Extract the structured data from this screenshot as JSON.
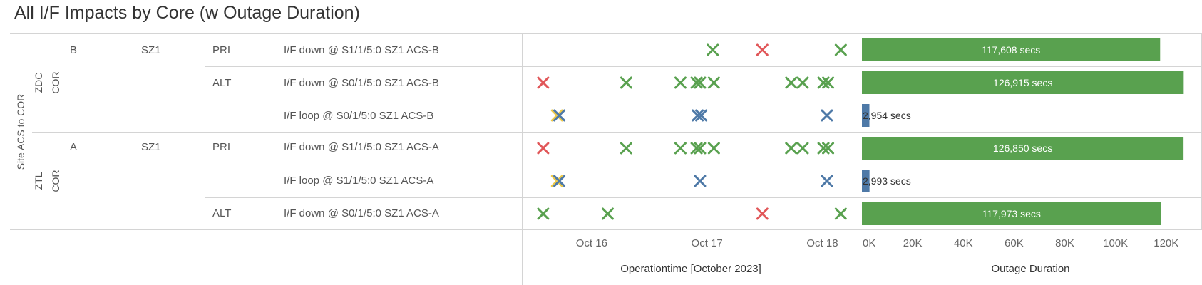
{
  "title": "All I/F Impacts by Core (w Outage Duration)",
  "dimension_label": "Site ACS to COR",
  "colors": {
    "green": "#59a14f",
    "red": "#e15759",
    "blue": "#4e79a7",
    "yellow": "#edc948",
    "grid": "#d4d4d4"
  },
  "groups": [
    {
      "core": "ZDC COR",
      "core_lines": [
        "ZDC",
        "COR"
      ],
      "site": "B",
      "zone": "SZ1"
    },
    {
      "core": "ZTL COR",
      "core_lines": [
        "ZTL",
        "COR"
      ],
      "site": "A",
      "zone": "SZ1"
    }
  ],
  "rows": [
    {
      "path": "PRI",
      "interface": "I/F down @ S1/1/5:0 SZ1 ACS-B",
      "duration_label": "117,608 secs"
    },
    {
      "path": "ALT",
      "interface": "I/F down @ S0/1/5:0 SZ1 ACS-B",
      "duration_label": "126,915 secs"
    },
    {
      "path": "",
      "interface": "I/F loop @ S0/1/5:0 SZ1 ACS-B",
      "duration_label": "2,954 secs"
    },
    {
      "path": "PRI",
      "interface": "I/F down @ S1/1/5:0 SZ1 ACS-A",
      "duration_label": "126,850 secs"
    },
    {
      "path": "",
      "interface": "I/F loop @ S1/1/5:0 SZ1 ACS-A",
      "duration_label": "2,993 secs"
    },
    {
      "path": "ALT",
      "interface": "I/F down @ S0/1/5:0 SZ1 ACS-A",
      "duration_label": "117,973 secs"
    }
  ],
  "chart_data": [
    {
      "type": "scatter",
      "xlabel": "Operationtime [October 2023]",
      "x_ticks": [
        "Oct 16",
        "Oct 17",
        "Oct 18"
      ],
      "x_unit": "day of October 2023",
      "x_range": [
        15.42,
        18.3
      ],
      "categories": [
        "I/F down @ S1/1/5:0 SZ1 ACS-B",
        "I/F down @ S0/1/5:0 SZ1 ACS-B",
        "I/F loop @ S0/1/5:0 SZ1 ACS-B",
        "I/F down @ S1/1/5:0 SZ1 ACS-A",
        "I/F loop @ S1/1/5:0 SZ1 ACS-A",
        "I/F down @ S0/1/5:0 SZ1 ACS-A"
      ],
      "marks": [
        {
          "row": 0,
          "x": 17.05,
          "color": "green"
        },
        {
          "row": 0,
          "x": 17.48,
          "color": "red"
        },
        {
          "row": 0,
          "x": 18.16,
          "color": "green"
        },
        {
          "row": 1,
          "x": 15.58,
          "color": "red"
        },
        {
          "row": 1,
          "x": 16.3,
          "color": "green"
        },
        {
          "row": 1,
          "x": 16.77,
          "color": "green"
        },
        {
          "row": 1,
          "x": 16.91,
          "color": "green"
        },
        {
          "row": 1,
          "x": 16.94,
          "color": "green"
        },
        {
          "row": 1,
          "x": 17.06,
          "color": "green"
        },
        {
          "row": 1,
          "x": 17.73,
          "color": "green"
        },
        {
          "row": 1,
          "x": 17.83,
          "color": "green"
        },
        {
          "row": 1,
          "x": 18.01,
          "color": "green"
        },
        {
          "row": 1,
          "x": 18.05,
          "color": "green"
        },
        {
          "row": 2,
          "x": 15.7,
          "color": "yellow"
        },
        {
          "row": 2,
          "x": 15.72,
          "color": "blue"
        },
        {
          "row": 2,
          "x": 16.92,
          "color": "blue"
        },
        {
          "row": 2,
          "x": 16.95,
          "color": "blue"
        },
        {
          "row": 2,
          "x": 18.04,
          "color": "blue"
        },
        {
          "row": 3,
          "x": 15.58,
          "color": "red"
        },
        {
          "row": 3,
          "x": 16.3,
          "color": "green"
        },
        {
          "row": 3,
          "x": 16.77,
          "color": "green"
        },
        {
          "row": 3,
          "x": 16.91,
          "color": "green"
        },
        {
          "row": 3,
          "x": 16.94,
          "color": "green"
        },
        {
          "row": 3,
          "x": 17.06,
          "color": "green"
        },
        {
          "row": 3,
          "x": 17.73,
          "color": "green"
        },
        {
          "row": 3,
          "x": 17.83,
          "color": "green"
        },
        {
          "row": 3,
          "x": 18.01,
          "color": "green"
        },
        {
          "row": 3,
          "x": 18.05,
          "color": "green"
        },
        {
          "row": 4,
          "x": 15.7,
          "color": "yellow"
        },
        {
          "row": 4,
          "x": 15.72,
          "color": "blue"
        },
        {
          "row": 4,
          "x": 16.94,
          "color": "blue"
        },
        {
          "row": 4,
          "x": 18.04,
          "color": "blue"
        },
        {
          "row": 5,
          "x": 15.58,
          "color": "green"
        },
        {
          "row": 5,
          "x": 16.14,
          "color": "green"
        },
        {
          "row": 5,
          "x": 17.48,
          "color": "red"
        },
        {
          "row": 5,
          "x": 18.16,
          "color": "green"
        }
      ]
    },
    {
      "type": "bar",
      "orientation": "horizontal",
      "xlabel": "Outage Duration",
      "x_ticks": [
        "0K",
        "20K",
        "40K",
        "60K",
        "80K",
        "100K",
        "120K"
      ],
      "x_range": [
        0,
        133000
      ],
      "categories": [
        "I/F down @ S1/1/5:0 SZ1 ACS-B",
        "I/F down @ S0/1/5:0 SZ1 ACS-B",
        "I/F loop @ S0/1/5:0 SZ1 ACS-B",
        "I/F down @ S1/1/5:0 SZ1 ACS-A",
        "I/F loop @ S1/1/5:0 SZ1 ACS-A",
        "I/F down @ S0/1/5:0 SZ1 ACS-A"
      ],
      "values": [
        117608,
        126915,
        2954,
        126850,
        2993,
        117973
      ],
      "bar_colors": [
        "green",
        "green",
        "blue",
        "green",
        "blue",
        "green"
      ]
    }
  ]
}
